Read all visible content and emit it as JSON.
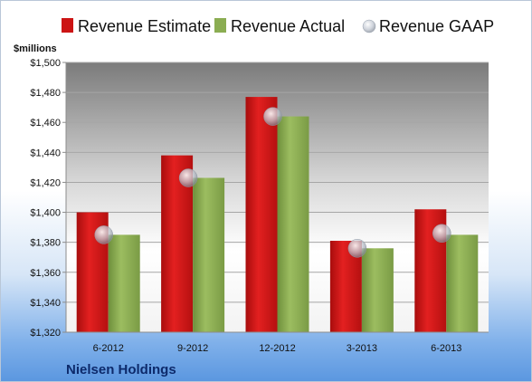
{
  "chart_data": {
    "type": "bar",
    "company": "Nielsen Holdings",
    "ylabel": "$millions",
    "xlabel": "",
    "ylim": [
      1320,
      1500
    ],
    "ytick_step": 20,
    "y_ticks": [
      "$1,320",
      "$1,340",
      "$1,360",
      "$1,380",
      "$1,400",
      "$1,420",
      "$1,440",
      "$1,460",
      "$1,480",
      "$1,500"
    ],
    "grid": true,
    "legend_position": "top",
    "categories": [
      "6-2012",
      "9-2012",
      "12-2012",
      "3-2013",
      "6-2013"
    ],
    "series": [
      {
        "name": "Revenue Estimate",
        "kind": "bar",
        "color": "#cc1414",
        "values": [
          1400,
          1438,
          1477,
          1381,
          1402
        ]
      },
      {
        "name": "Revenue Actual",
        "kind": "bar",
        "color": "#8bad52",
        "values": [
          1385,
          1423,
          1464,
          1376,
          1385
        ]
      },
      {
        "name": "Revenue GAAP",
        "kind": "marker",
        "color": "#b9c2cf",
        "values": [
          1385,
          1423,
          1464,
          1376,
          1386
        ]
      }
    ]
  }
}
